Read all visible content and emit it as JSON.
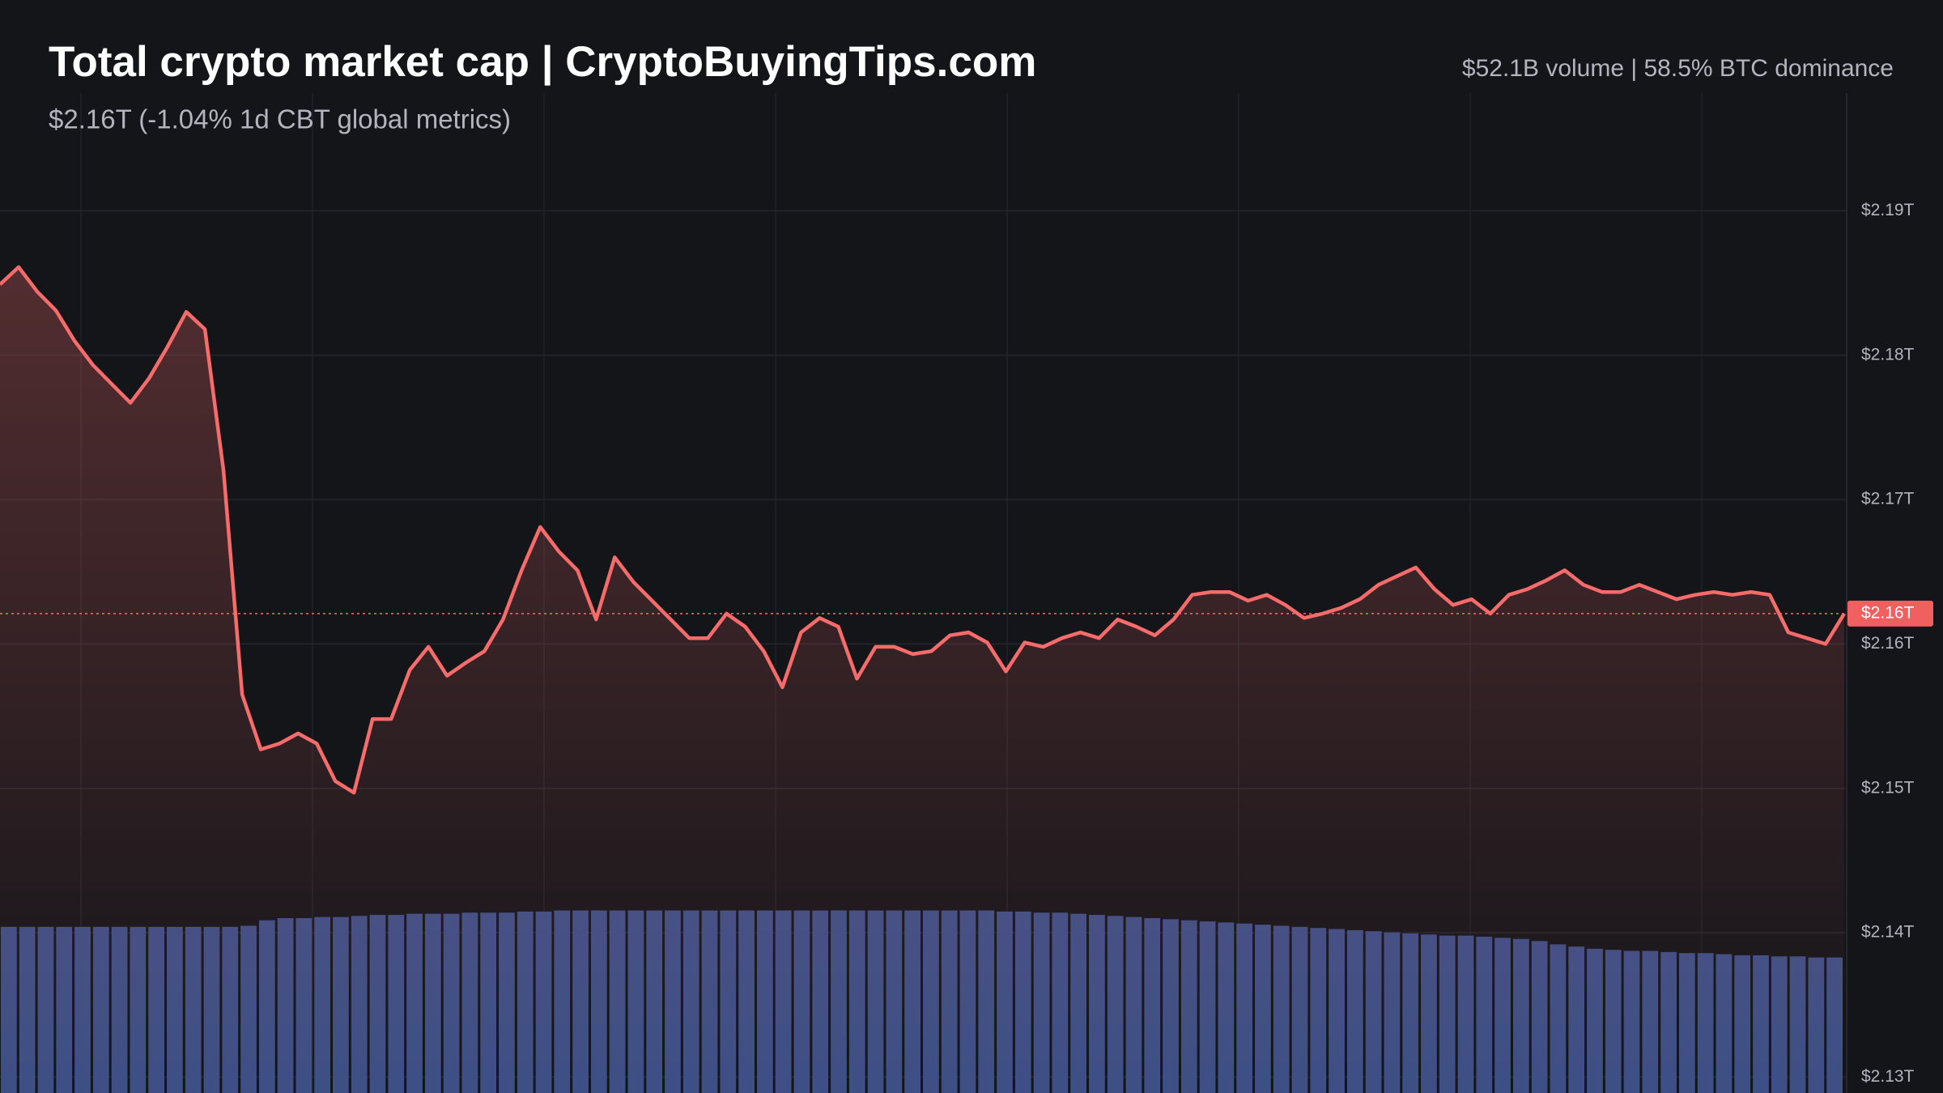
{
  "chart_data": {
    "type": "line",
    "title": "Total crypto market cap | CryptoBuyingTips.com",
    "subtitle": "$2.16T (-1.04% 1d CBT global metrics)",
    "annotation": "$52.1B volume | 58.5% BTC dominance",
    "last_value_label": "$2.16T",
    "ylim": [
      2.1289,
      2.2046
    ],
    "yticks": [
      {
        "value": 2.13,
        "label": "$2.13T"
      },
      {
        "value": 2.14,
        "label": "$2.14T"
      },
      {
        "value": 2.15,
        "label": "$2.15T"
      },
      {
        "value": 2.16,
        "label": "$2.16T"
      },
      {
        "value": 2.17,
        "label": "$2.17T"
      },
      {
        "value": 2.18,
        "label": "$2.18T"
      },
      {
        "value": 2.19,
        "label": "$2.19T"
      }
    ],
    "y2lim": [
      0,
      100
    ],
    "grid": true,
    "series": [
      {
        "color": "#f76b6b",
        "values": [
          2.1849,
          2.1861,
          2.1844,
          2.1831,
          2.181,
          2.1793,
          2.178,
          2.1767,
          2.1784,
          2.1806,
          2.183,
          2.1818,
          2.172,
          2.1565,
          2.1527,
          2.1531,
          2.1538,
          2.1531,
          2.1505,
          2.1497,
          2.1548,
          2.1548,
          2.1582,
          2.1598,
          2.1578,
          2.1587,
          2.1595,
          2.1617,
          2.1651,
          2.1681,
          2.1664,
          2.1651,
          2.1617,
          2.166,
          2.1643,
          2.163,
          2.1617,
          2.1604,
          2.1604,
          2.1621,
          2.1612,
          2.1595,
          2.157,
          2.1608,
          2.1618,
          2.1612,
          2.1576,
          2.1598,
          2.1598,
          2.1593,
          2.1595,
          2.1606,
          2.1608,
          2.1601,
          2.1581,
          2.1601,
          2.1598,
          2.1604,
          2.1608,
          2.1604,
          2.1617,
          2.1612,
          2.1606,
          2.1617,
          2.1634,
          2.1636,
          2.1636,
          2.163,
          2.1634,
          2.1627,
          2.1618,
          2.1621,
          2.1625,
          2.1631,
          2.1641,
          2.1647,
          2.1653,
          2.1638,
          2.1627,
          2.1631,
          2.1621,
          2.1634,
          2.1638,
          2.1644,
          2.1651,
          2.1641,
          2.1636,
          2.1636,
          2.1641,
          2.1636,
          2.1631,
          2.1634,
          2.1636,
          2.1634,
          2.1636,
          2.1634,
          2.1608,
          2.1604,
          2.16,
          2.1621
        ]
      },
      {
        "color": "#3d4f85",
        "axis": "y2",
        "values": [
          15.2,
          15.2,
          15.2,
          15.2,
          15.2,
          15.2,
          15.2,
          15.2,
          15.2,
          15.2,
          15.2,
          15.2,
          15.2,
          15.3,
          15.8,
          16.0,
          16.0,
          16.1,
          16.1,
          16.2,
          16.3,
          16.3,
          16.4,
          16.4,
          16.4,
          16.5,
          16.5,
          16.5,
          16.6,
          16.6,
          16.7,
          16.7,
          16.7,
          16.7,
          16.7,
          16.7,
          16.7,
          16.7,
          16.7,
          16.7,
          16.7,
          16.7,
          16.7,
          16.7,
          16.7,
          16.7,
          16.7,
          16.7,
          16.7,
          16.7,
          16.7,
          16.7,
          16.7,
          16.7,
          16.6,
          16.6,
          16.5,
          16.5,
          16.4,
          16.3,
          16.2,
          16.1,
          16.0,
          15.9,
          15.8,
          15.7,
          15.6,
          15.5,
          15.4,
          15.3,
          15.2,
          15.1,
          15.0,
          14.9,
          14.8,
          14.7,
          14.6,
          14.5,
          14.4,
          14.4,
          14.3,
          14.2,
          14.1,
          13.9,
          13.6,
          13.4,
          13.2,
          13.1,
          13.0,
          13.0,
          12.9,
          12.8,
          12.8,
          12.7,
          12.6,
          12.6,
          12.5,
          12.5,
          12.4,
          12.4
        ]
      }
    ]
  }
}
